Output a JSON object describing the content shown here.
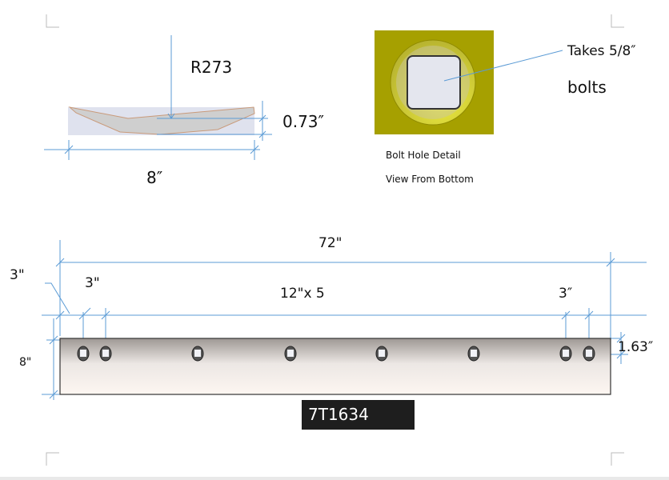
{
  "profile_view": {
    "radius_label": "R273",
    "thickness_label": "0.73″",
    "width_label": "8″"
  },
  "bolt_detail": {
    "callout": "Takes 5/8″",
    "callout_line2": "bolts",
    "caption": "Bolt Hole Detail",
    "subcaption": "View From Bottom",
    "colors": {
      "background": "#a6a000",
      "ring": "#d8d640",
      "hole": "#e4e6ee"
    }
  },
  "blade_view": {
    "length_label": "72\"",
    "edge_offset_label": "3\"",
    "first_hole_label": "3\"",
    "spacing_label": "12\"x 5",
    "last_hole_label": "3″",
    "hole_height_label": "1.63″",
    "height_label": "8\"",
    "part_number": "7T1634",
    "hole_count": 8
  },
  "colors": {
    "dimension_line": "#5b9bd5"
  }
}
